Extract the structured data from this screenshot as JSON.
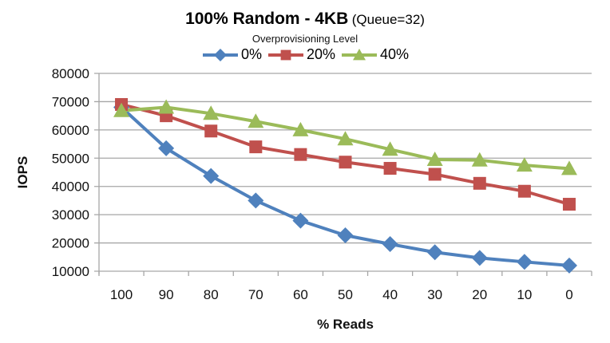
{
  "chart_data": {
    "type": "line",
    "title": "100% Random  - 4KB",
    "title_suffix": "(Queue=32)",
    "subtitle": "Overprovisioning Level",
    "xlabel": "% Reads",
    "ylabel": "IOPS",
    "categories": [
      "100",
      "90",
      "80",
      "70",
      "60",
      "50",
      "40",
      "30",
      "20",
      "10",
      "0"
    ],
    "ylim": [
      10000,
      80000
    ],
    "yticks": [
      10000,
      20000,
      30000,
      40000,
      50000,
      60000,
      70000,
      80000
    ],
    "grid": true,
    "legend_position": "top",
    "series": [
      {
        "name": "0%",
        "color": "#4F81BD",
        "marker": "diamond",
        "values": [
          68000,
          53500,
          43700,
          35000,
          27900,
          22700,
          19600,
          16700,
          14700,
          13300,
          12000
        ]
      },
      {
        "name": "20%",
        "color": "#C0504D",
        "marker": "square",
        "values": [
          69000,
          65000,
          59600,
          54000,
          51300,
          48600,
          46400,
          44300,
          41100,
          38300,
          33700
        ]
      },
      {
        "name": "40%",
        "color": "#9BBB59",
        "marker": "triangle",
        "values": [
          66800,
          68000,
          65800,
          63000,
          60000,
          56800,
          53100,
          49500,
          49300,
          47500,
          46300
        ]
      }
    ]
  }
}
